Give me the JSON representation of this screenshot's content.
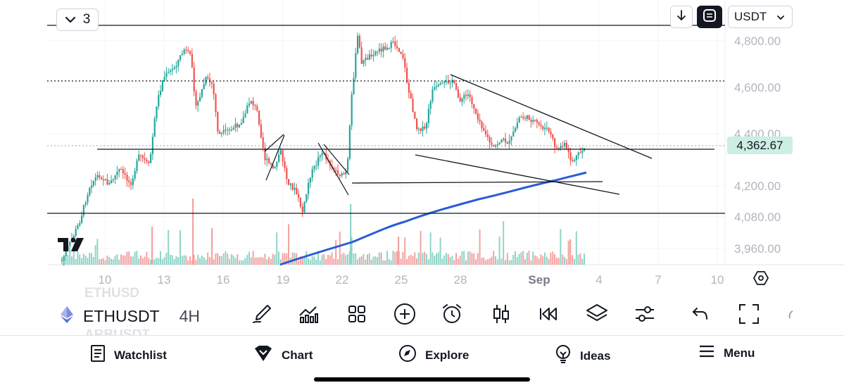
{
  "chart": {
    "symbol": "ETHUSDT",
    "interval": "4H",
    "indicator_count": "3",
    "currency": "USDT",
    "last_price": "4,362.67",
    "price_labels": [
      "4,800.00",
      "4,600.00",
      "4,400.00",
      "4,200.00",
      "4,080.00",
      "3,960.00"
    ],
    "date_labels": [
      "10",
      "13",
      "16",
      "19",
      "22",
      "25",
      "28",
      "Sep",
      "4",
      "7",
      "10"
    ],
    "ghost_symbols": [
      "ETHUSD",
      "ARBUSDT"
    ],
    "colors": {
      "up": "#26a69a",
      "down": "#ef5350",
      "ma": "#2a5bd7",
      "up_volume": "#8fd4c8",
      "down_volume": "#f3a3a1",
      "price_tag": "#cdeee3"
    }
  },
  "toolbar": {
    "tools": [
      "brush-icon",
      "indicators-icon",
      "layouts-icon",
      "add-icon",
      "alert-icon",
      "candles-icon",
      "replay-icon",
      "layers-icon",
      "settings-sliders-icon",
      "undo-icon",
      "fullscreen-icon"
    ]
  },
  "nav": {
    "watchlist": "Watchlist",
    "chart": "Chart",
    "explore": "Explore",
    "ideas": "Ideas",
    "menu": "Menu"
  }
}
